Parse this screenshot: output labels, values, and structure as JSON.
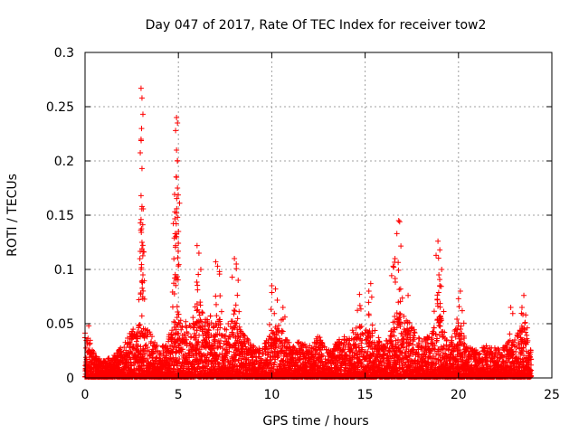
{
  "chart_data": {
    "type": "scatter",
    "title": "Day 047 of 2017, Rate Of TEC Index for receiver tow2",
    "xlabel": "GPS time / hours",
    "ylabel": "ROTI / TECUs",
    "xlim": [
      0,
      25
    ],
    "ylim": [
      0,
      0.3
    ],
    "xticks": [
      0,
      5,
      10,
      15,
      20,
      25
    ],
    "xtick_labels": [
      "0",
      "5",
      "10",
      "15",
      "20",
      "25"
    ],
    "yticks": [
      0,
      0.05,
      0.1,
      0.15,
      0.2,
      0.25,
      0.3
    ],
    "ytick_labels": [
      "0",
      "0.05",
      "0.1",
      "0.15",
      "0.2",
      "0.25",
      "0.3"
    ],
    "grid": true,
    "marker": "+",
    "color": "#ff0000",
    "data_range_hours": [
      0,
      23.9
    ],
    "peaks": [
      {
        "x": 0.2,
        "y": 0.048
      },
      {
        "x": 3.0,
        "y": 0.267
      },
      {
        "x": 3.05,
        "y": 0.258
      },
      {
        "x": 3.1,
        "y": 0.243
      },
      {
        "x": 3.0,
        "y": 0.22
      },
      {
        "x": 3.05,
        "y": 0.193
      },
      {
        "x": 3.0,
        "y": 0.168
      },
      {
        "x": 3.05,
        "y": 0.158
      },
      {
        "x": 3.0,
        "y": 0.146
      },
      {
        "x": 3.05,
        "y": 0.125
      },
      {
        "x": 3.0,
        "y": 0.1
      },
      {
        "x": 3.1,
        "y": 0.095
      },
      {
        "x": 4.9,
        "y": 0.24
      },
      {
        "x": 4.95,
        "y": 0.235
      },
      {
        "x": 4.85,
        "y": 0.228
      },
      {
        "x": 4.9,
        "y": 0.21
      },
      {
        "x": 4.95,
        "y": 0.2
      },
      {
        "x": 4.9,
        "y": 0.185
      },
      {
        "x": 4.95,
        "y": 0.175
      },
      {
        "x": 4.9,
        "y": 0.152
      },
      {
        "x": 4.95,
        "y": 0.148
      },
      {
        "x": 4.9,
        "y": 0.13
      },
      {
        "x": 4.85,
        "y": 0.122
      },
      {
        "x": 4.8,
        "y": 0.092
      },
      {
        "x": 6.0,
        "y": 0.122
      },
      {
        "x": 6.1,
        "y": 0.115
      },
      {
        "x": 6.2,
        "y": 0.1
      },
      {
        "x": 7.0,
        "y": 0.107
      },
      {
        "x": 7.1,
        "y": 0.103
      },
      {
        "x": 7.2,
        "y": 0.098
      },
      {
        "x": 8.0,
        "y": 0.11
      },
      {
        "x": 8.1,
        "y": 0.105
      },
      {
        "x": 8.2,
        "y": 0.09
      },
      {
        "x": 10.0,
        "y": 0.085
      },
      {
        "x": 10.2,
        "y": 0.082
      },
      {
        "x": 10.6,
        "y": 0.065
      },
      {
        "x": 14.7,
        "y": 0.077
      },
      {
        "x": 15.3,
        "y": 0.087
      },
      {
        "x": 15.2,
        "y": 0.08
      },
      {
        "x": 16.8,
        "y": 0.145
      },
      {
        "x": 16.85,
        "y": 0.144
      },
      {
        "x": 16.7,
        "y": 0.133
      },
      {
        "x": 16.6,
        "y": 0.11
      },
      {
        "x": 16.5,
        "y": 0.103
      },
      {
        "x": 16.9,
        "y": 0.082
      },
      {
        "x": 17.3,
        "y": 0.076
      },
      {
        "x": 18.9,
        "y": 0.126
      },
      {
        "x": 19.0,
        "y": 0.118
      },
      {
        "x": 18.8,
        "y": 0.113
      },
      {
        "x": 19.1,
        "y": 0.1
      },
      {
        "x": 18.95,
        "y": 0.095
      },
      {
        "x": 19.0,
        "y": 0.085
      },
      {
        "x": 20.1,
        "y": 0.08
      },
      {
        "x": 20.0,
        "y": 0.073
      },
      {
        "x": 20.2,
        "y": 0.062
      },
      {
        "x": 22.8,
        "y": 0.065
      },
      {
        "x": 23.5,
        "y": 0.076
      },
      {
        "x": 23.4,
        "y": 0.065
      },
      {
        "x": 23.6,
        "y": 0.058
      }
    ],
    "envelope_hours": [
      0,
      0.5,
      1,
      1.5,
      2,
      2.5,
      3,
      3.5,
      4,
      4.5,
      5,
      5.5,
      6,
      6.5,
      7,
      7.5,
      8,
      8.5,
      9,
      9.5,
      10,
      10.5,
      11,
      11.5,
      12,
      12.5,
      13,
      13.5,
      14,
      14.5,
      15,
      15.5,
      16,
      16.5,
      17,
      17.5,
      18,
      18.5,
      19,
      19.5,
      20,
      20.5,
      21,
      21.5,
      22,
      22.5,
      23,
      23.5,
      23.9
    ],
    "envelope_max": [
      0.045,
      0.022,
      0.018,
      0.02,
      0.03,
      0.045,
      0.05,
      0.042,
      0.025,
      0.04,
      0.06,
      0.05,
      0.07,
      0.055,
      0.06,
      0.045,
      0.065,
      0.04,
      0.03,
      0.028,
      0.045,
      0.05,
      0.03,
      0.035,
      0.03,
      0.04,
      0.025,
      0.035,
      0.04,
      0.048,
      0.05,
      0.045,
      0.03,
      0.05,
      0.06,
      0.048,
      0.035,
      0.04,
      0.06,
      0.03,
      0.055,
      0.03,
      0.025,
      0.03,
      0.028,
      0.03,
      0.04,
      0.05,
      0.025
    ]
  }
}
